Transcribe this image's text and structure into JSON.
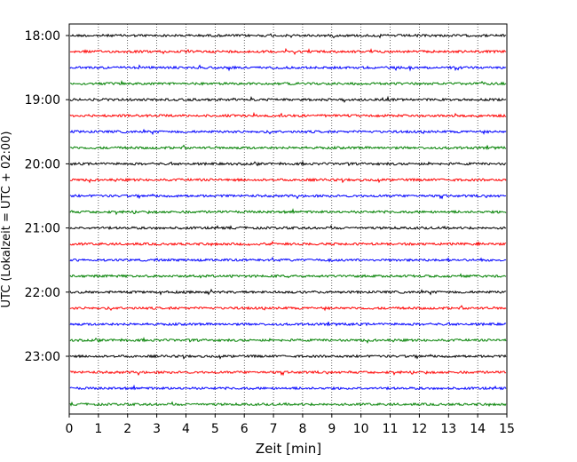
{
  "chart_data": {
    "type": "line",
    "title": "",
    "xlabel": "Zeit  [min]",
    "ylabel": "UTC (Lokalzeit = UTC + 02:00)",
    "xlim": [
      0,
      15
    ],
    "xticks": [
      0,
      1,
      2,
      3,
      4,
      5,
      6,
      7,
      8,
      9,
      10,
      11,
      12,
      13,
      14,
      15
    ],
    "xtick_labels": [
      "0",
      "1",
      "2",
      "3",
      "4",
      "5",
      "6",
      "7",
      "8",
      "9",
      "10",
      "11",
      "12",
      "13",
      "14",
      "15"
    ],
    "ytick_labels": [
      "18:00",
      "19:00",
      "20:00",
      "21:00",
      "22:00",
      "23:00"
    ],
    "trace_interval_min": 15,
    "trace_start": "18:00",
    "trace_count": 24,
    "trace_colors": [
      "#000000",
      "#ff0000",
      "#0000ff",
      "#008000"
    ],
    "grid": "vertical dotted",
    "note_waveform": "seismogram traces, amplitude not labeled"
  }
}
